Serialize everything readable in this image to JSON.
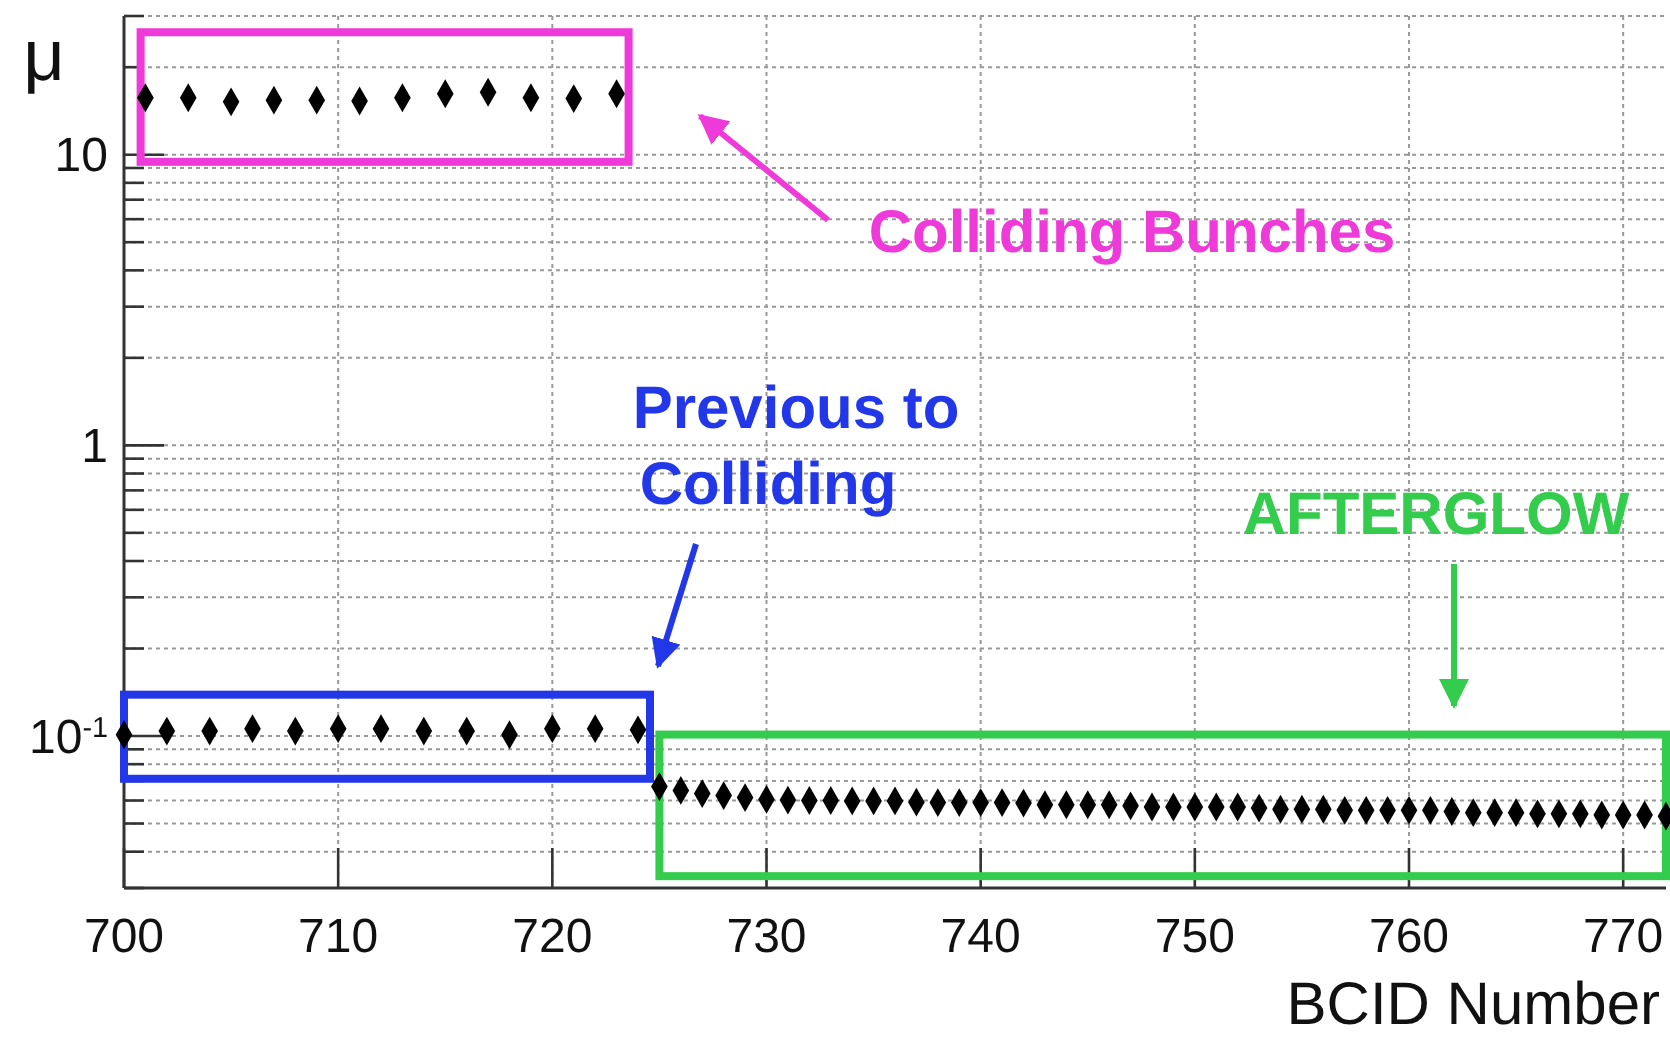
{
  "chart_data": {
    "type": "scatter",
    "xlabel": "BCID Number",
    "ylabel": "μ",
    "log": "y",
    "grid": true,
    "marker": "diamond",
    "xlim": [
      700,
      772
    ],
    "xticks": [
      700,
      710,
      720,
      730,
      740,
      750,
      760,
      770
    ],
    "ylim": [
      0.03,
      30
    ],
    "yticks": [
      {
        "value": 0.03,
        "label": null
      },
      {
        "value": 0.04,
        "label": null
      },
      {
        "value": 0.05,
        "label": null
      },
      {
        "value": 0.06,
        "label": null
      },
      {
        "value": 0.07,
        "label": null
      },
      {
        "value": 0.08,
        "label": null
      },
      {
        "value": 0.09,
        "label": null
      },
      {
        "value": 0.1,
        "label": "10$^{-1}$"
      },
      {
        "value": 0.2,
        "label": null
      },
      {
        "value": 0.3,
        "label": null
      },
      {
        "value": 0.4,
        "label": null
      },
      {
        "value": 0.5,
        "label": null
      },
      {
        "value": 0.6,
        "label": null
      },
      {
        "value": 0.7,
        "label": null
      },
      {
        "value": 0.8,
        "label": null
      },
      {
        "value": 0.9,
        "label": null
      },
      1,
      {
        "value": 2,
        "label": null
      },
      {
        "value": 3,
        "label": null
      },
      {
        "value": 4,
        "label": null
      },
      {
        "value": 5,
        "label": null
      },
      {
        "value": 6,
        "label": null
      },
      {
        "value": 7,
        "label": null
      },
      {
        "value": 8,
        "label": null
      },
      {
        "value": 9,
        "label": null
      },
      10,
      {
        "value": 20,
        "label": null
      },
      {
        "value": 30,
        "label": null
      }
    ],
    "series": [
      {
        "color": "#000000",
        "x": [
          701,
          703,
          705,
          707,
          709,
          711,
          713,
          715,
          717,
          719,
          721,
          723
        ],
        "values": [
          15.7,
          15.7,
          15.2,
          15.4,
          15.4,
          15.3,
          15.7,
          16.2,
          16.4,
          15.7,
          15.6,
          16.2
        ]
      },
      {
        "color": "#000000",
        "x": [
          700,
          702,
          704,
          706,
          708,
          710,
          712,
          714,
          716,
          718,
          720,
          722,
          724
        ],
        "values": [
          0.101,
          0.104,
          0.104,
          0.106,
          0.104,
          0.106,
          0.106,
          0.104,
          0.104,
          0.101,
          0.106,
          0.106,
          0.105
        ]
      },
      {
        "color": "#000000",
        "x": [
          725,
          726,
          727,
          728,
          729,
          730,
          731,
          732,
          733,
          734,
          735,
          736,
          737,
          738,
          739,
          740,
          741,
          742,
          743,
          744,
          745,
          746,
          747,
          748,
          749,
          750,
          751,
          752,
          753,
          754,
          755,
          756,
          757,
          758,
          759,
          760,
          761,
          762,
          763,
          764,
          765,
          766,
          767,
          768,
          769,
          770,
          771,
          772
        ],
        "values": [
          0.067,
          0.065,
          0.0634,
          0.0624,
          0.0614,
          0.0605,
          0.0602,
          0.06,
          0.06,
          0.0598,
          0.0598,
          0.0598,
          0.0592,
          0.059,
          0.059,
          0.059,
          0.059,
          0.0588,
          0.058,
          0.058,
          0.058,
          0.058,
          0.0575,
          0.057,
          0.057,
          0.057,
          0.057,
          0.057,
          0.0565,
          0.056,
          0.056,
          0.056,
          0.0555,
          0.0555,
          0.0555,
          0.0555,
          0.0555,
          0.055,
          0.0545,
          0.0545,
          0.0545,
          0.054,
          0.054,
          0.054,
          0.0535,
          0.0535,
          0.0535,
          0.053
        ]
      }
    ],
    "annotations": [
      "Colliding Bunches",
      "Previous to\nColliding",
      "AFTERGLOW"
    ]
  }
}
